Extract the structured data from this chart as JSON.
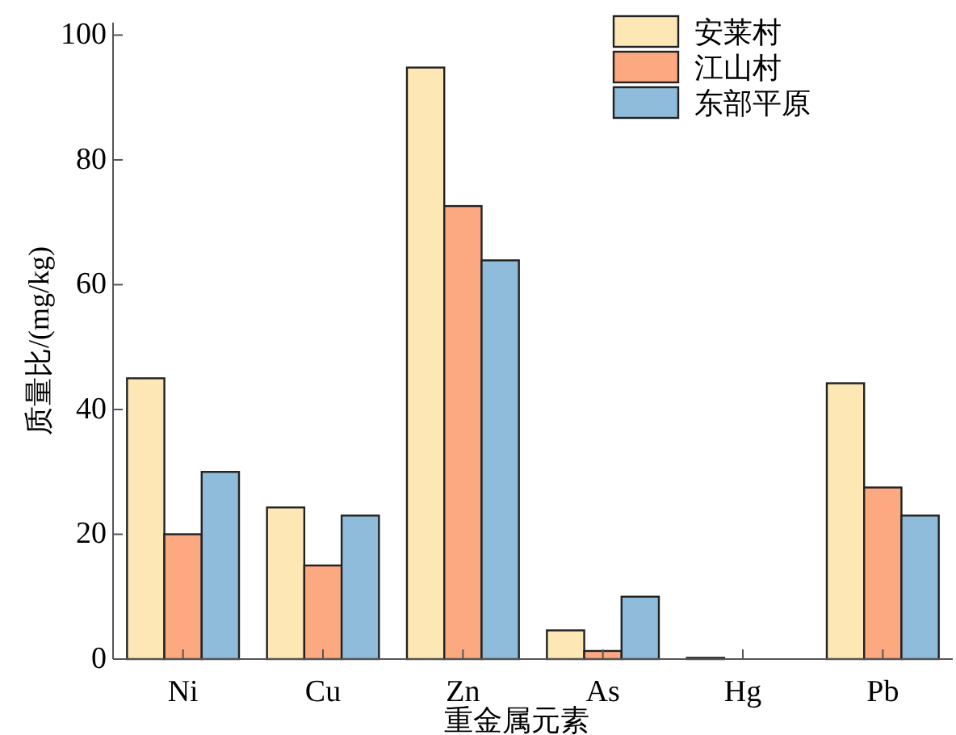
{
  "chart_data": {
    "type": "bar",
    "xlabel": "重金属元素",
    "ylabel": "质量比/(mg/kg)",
    "categories": [
      "Ni",
      "Cu",
      "Zn",
      "As",
      "Hg",
      "Pb"
    ],
    "series": [
      {
        "name": "安莱村",
        "color": "#fde8b5",
        "values": [
          45,
          24.3,
          94.8,
          4.6,
          0.2,
          44.2
        ]
      },
      {
        "name": "江山村",
        "color": "#fca982",
        "values": [
          20,
          15,
          72.6,
          1.3,
          null,
          27.5
        ]
      },
      {
        "name": "东部平原",
        "color": "#8fbcdb",
        "values": [
          30,
          23,
          63.9,
          10,
          null,
          23
        ]
      }
    ],
    "ylim": [
      0,
      102
    ],
    "yticks": [
      0,
      20,
      40,
      60,
      80,
      100
    ],
    "grid": false,
    "legend": "top right"
  }
}
